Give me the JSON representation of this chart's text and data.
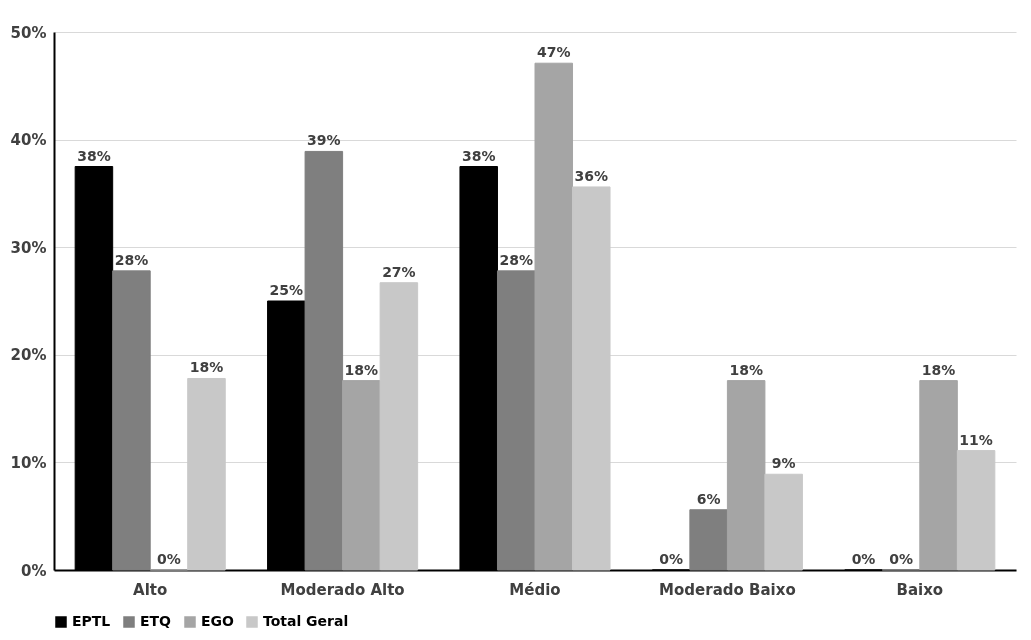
{
  "chart_data": {
    "type": "bar",
    "categories": [
      "Alto",
      "Moderado Alto",
      "Médio",
      "Moderado Baixo",
      "Baixo"
    ],
    "series": [
      {
        "name": "EPTL",
        "color": "#000000",
        "values": [
          37.5,
          25,
          37.5,
          0,
          0
        ],
        "value_labels": [
          "38%",
          "25%",
          "38%",
          "0%",
          "0%"
        ]
      },
      {
        "name": "ETQ",
        "color": "#7f7f7f",
        "values": [
          27.8,
          38.9,
          27.8,
          5.6,
          0
        ],
        "value_labels": [
          "28%",
          "39%",
          "28%",
          "6%",
          "0%"
        ]
      },
      {
        "name": "EGO",
        "color": "#a5a5a5",
        "values": [
          0,
          17.6,
          47.1,
          17.6,
          17.6
        ],
        "value_labels": [
          "0%",
          "18%",
          "47%",
          "18%",
          "18%"
        ]
      },
      {
        "name": "Total Geral",
        "color": "#c8c8c8",
        "values": [
          17.8,
          26.7,
          35.6,
          8.9,
          11.1
        ],
        "value_labels": [
          "18%",
          "27%",
          "36%",
          "9%",
          "11%"
        ]
      }
    ],
    "ylim": [
      0,
      50
    ],
    "yticks": [
      {
        "value": 0,
        "label": "0%"
      },
      {
        "value": 10,
        "label": "10%"
      },
      {
        "value": 20,
        "label": "20%"
      },
      {
        "value": 30,
        "label": "30%"
      },
      {
        "value": 40,
        "label": "40%"
      },
      {
        "value": 50,
        "label": "50%"
      }
    ],
    "grid": "y",
    "legend": "bottom"
  }
}
